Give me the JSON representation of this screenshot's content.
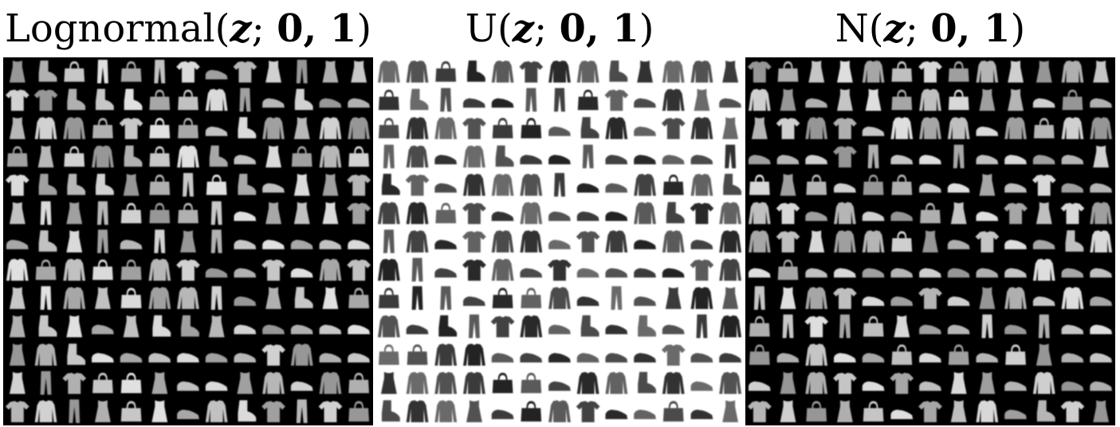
{
  "panels": [
    {
      "id": "lognormal",
      "title": "Lognormal(z; 0, 1)",
      "title_parts": {
        "func": "Lognormal(",
        "var": "z",
        "sep": "; ",
        "params": "0, 1",
        "close": ")"
      },
      "background": "#000000",
      "foreground": "#e8e8e8",
      "rows": [
        [
          "dress",
          "boot",
          "bag",
          "trouser",
          "bag",
          "trouser",
          "tshirt",
          "sneaker",
          "tshirt",
          "dress",
          "trouser",
          "dress",
          "dress"
        ],
        [
          "tshirt",
          "tshirt",
          "boot",
          "boot",
          "boot",
          "bag",
          "bag",
          "pullover",
          "trouser",
          "sneaker",
          "boot",
          "sneaker",
          "sneaker"
        ],
        [
          "dress",
          "pullover",
          "pullover",
          "bag",
          "tshirt",
          "bag",
          "bag",
          "sneaker",
          "boot",
          "pullover",
          "dress",
          "pullover",
          "pullover"
        ],
        [
          "bag",
          "dress",
          "bag",
          "pullover",
          "boot",
          "bag",
          "pullover",
          "boot",
          "sneaker",
          "dress",
          "bag",
          "pullover",
          "bag"
        ],
        [
          "tshirt",
          "boot",
          "boot",
          "boot",
          "dress",
          "bag",
          "trouser",
          "bag",
          "boot",
          "sneaker",
          "dress",
          "dress",
          "tshirt"
        ],
        [
          "dress",
          "trouser",
          "dress",
          "trouser",
          "bag",
          "bag",
          "bag",
          "trouser",
          "sneaker",
          "dress",
          "dress",
          "dress",
          "tshirt"
        ],
        [
          "sneaker",
          "boot",
          "dress",
          "trouser",
          "sneaker",
          "trouser",
          "dress",
          "trouser",
          "sneaker",
          "sneaker",
          "sneaker",
          "sneaker",
          "sneaker"
        ],
        [
          "pullover",
          "bag",
          "pullover",
          "bag",
          "bag",
          "pullover",
          "tshirt",
          "sneaker",
          "sneaker",
          "tshirt",
          "sneaker",
          "pullover",
          "tshirt"
        ],
        [
          "dress",
          "trouser",
          "pullover",
          "dress",
          "bag",
          "pullover",
          "pullover",
          "trouser",
          "sneaker",
          "dress",
          "boot",
          "dress",
          "bag"
        ],
        [
          "dress",
          "boot",
          "dress",
          "sneaker",
          "dress",
          "boot",
          "boot",
          "dress",
          "sneaker",
          "sneaker",
          "sneaker",
          "sneaker",
          "sneaker"
        ],
        [
          "dress",
          "pullover",
          "boot",
          "sneaker",
          "sneaker",
          "sneaker",
          "sneaker",
          "sneaker",
          "sneaker",
          "tshirt",
          "pullover",
          "sneaker",
          "sneaker"
        ],
        [
          "dress",
          "trouser",
          "tshirt",
          "bag",
          "bag",
          "dress",
          "sneaker",
          "sneaker",
          "dress",
          "pullover",
          "sneaker",
          "pullover",
          "bag"
        ],
        [
          "tshirt",
          "pullover",
          "trouser",
          "dress",
          "bag",
          "dress",
          "sneaker",
          "pullover",
          "boot",
          "tshirt",
          "trouser",
          "tshirt",
          "bag"
        ]
      ]
    },
    {
      "id": "uniform",
      "title": "U(z; 0, 1)",
      "title_parts": {
        "func": "U(",
        "var": "z",
        "sep": "; ",
        "params": "0, 1",
        "close": ")"
      },
      "background": "#ffffff",
      "foreground": "#1a1a1a",
      "rows": [
        [
          "pullover",
          "pullover",
          "bag",
          "boot",
          "pullover",
          "tshirt",
          "pullover",
          "pullover",
          "boot",
          "dress",
          "pullover",
          "pullover",
          "dress"
        ],
        [
          "bag",
          "boot",
          "trouser",
          "sneaker",
          "sneaker",
          "trouser",
          "trouser",
          "bag",
          "tshirt",
          "sneaker",
          "pullover",
          "dress",
          "sneaker"
        ],
        [
          "bag",
          "pullover",
          "pullover",
          "tshirt",
          "bag",
          "bag",
          "sneaker",
          "boot",
          "pullover",
          "sneaker",
          "tshirt",
          "pullover",
          "dress"
        ],
        [
          "trouser",
          "pullover",
          "sneaker",
          "pullover",
          "boot",
          "sneaker",
          "sneaker",
          "trouser",
          "sneaker",
          "sneaker",
          "sneaker",
          "sneaker",
          "trouser"
        ],
        [
          "boot",
          "tshirt",
          "sneaker",
          "pullover",
          "pullover",
          "pullover",
          "trouser",
          "sneaker",
          "sneaker",
          "pullover",
          "bag",
          "pullover",
          "boot"
        ],
        [
          "pullover",
          "pullover",
          "bag",
          "tshirt",
          "sneaker",
          "pullover",
          "sneaker",
          "sneaker",
          "sneaker",
          "pullover",
          "boot",
          "tshirt",
          "pullover"
        ],
        [
          "trouser",
          "pullover",
          "sneaker",
          "tshirt",
          "pullover",
          "pullover",
          "sneaker",
          "tshirt",
          "pullover",
          "sneaker",
          "pullover",
          "sneaker",
          "pullover"
        ],
        [
          "pullover",
          "trouser",
          "sneaker",
          "tshirt",
          "pullover",
          "sneaker",
          "tshirt",
          "sneaker",
          "sneaker",
          "sneaker",
          "sneaker",
          "tshirt",
          "pullover"
        ],
        [
          "bag",
          "trouser",
          "trouser",
          "sneaker",
          "bag",
          "bag",
          "pullover",
          "sneaker",
          "trouser",
          "sneaker",
          "dress",
          "pullover",
          "dress"
        ],
        [
          "pullover",
          "sneaker",
          "boot",
          "trouser",
          "tshirt",
          "pullover",
          "sneaker",
          "boot",
          "sneaker",
          "boot",
          "sneaker",
          "trouser",
          "pullover"
        ],
        [
          "bag",
          "bag",
          "pullover",
          "pullover",
          "sneaker",
          "sneaker",
          "sneaker",
          "sneaker",
          "sneaker",
          "sneaker",
          "tshirt",
          "sneaker",
          "sneaker"
        ],
        [
          "dress",
          "pullover",
          "pullover",
          "pullover",
          "bag",
          "bag",
          "sneaker",
          "pullover",
          "pullover",
          "boot",
          "pullover",
          "sneaker",
          "pullover"
        ],
        [
          "boot",
          "pullover",
          "pullover",
          "dress",
          "sneaker",
          "bag",
          "pullover",
          "tshirt",
          "sneaker",
          "sneaker",
          "bag",
          "sneaker",
          "dress"
        ]
      ]
    },
    {
      "id": "normal",
      "title": "N(z; 0, 1)",
      "title_parts": {
        "func": "N(",
        "var": "z",
        "sep": "; ",
        "params": "0, 1",
        "close": ")"
      },
      "background": "#000000",
      "foreground": "#e6e6e6",
      "rows": [
        [
          "tshirt",
          "bag",
          "dress",
          "dress",
          "pullover",
          "bag",
          "tshirt",
          "bag",
          "pullover",
          "dress",
          "dress",
          "pullover",
          "dress"
        ],
        [
          "pullover",
          "dress",
          "sneaker",
          "dress",
          "dress",
          "bag",
          "pullover",
          "bag",
          "dress",
          "dress",
          "sneaker",
          "bag",
          "sneaker"
        ],
        [
          "dress",
          "tshirt",
          "pullover",
          "tshirt",
          "sneaker",
          "pullover",
          "pullover",
          "pullover",
          "sneaker",
          "pullover",
          "bag",
          "pullover",
          "pullover"
        ],
        [
          "sneaker",
          "sneaker",
          "sneaker",
          "tshirt",
          "trouser",
          "sneaker",
          "sneaker",
          "trouser",
          "sneaker",
          "sneaker",
          "sneaker",
          "sneaker",
          "dress"
        ],
        [
          "bag",
          "dress",
          "bag",
          "sneaker",
          "bag",
          "bag",
          "sneaker",
          "sneaker",
          "dress",
          "sneaker",
          "tshirt",
          "sneaker",
          "sneaker"
        ],
        [
          "pullover",
          "tshirt",
          "sneaker",
          "pullover",
          "sneaker",
          "sneaker",
          "bag",
          "dress",
          "sneaker",
          "tshirt",
          "dress",
          "tshirt",
          "pullover"
        ],
        [
          "pullover",
          "tshirt",
          "dress",
          "pullover",
          "pullover",
          "bag",
          "dress",
          "sneaker",
          "tshirt",
          "sneaker",
          "sneaker",
          "boot",
          "pullover"
        ],
        [
          "sneaker",
          "bag",
          "sneaker",
          "sneaker",
          "sneaker",
          "sneaker",
          "sneaker",
          "sneaker",
          "sneaker",
          "sneaker",
          "pullover",
          "sneaker",
          "sneaker"
        ],
        [
          "trouser",
          "dress",
          "pullover",
          "tshirt",
          "sneaker",
          "sneaker",
          "tshirt",
          "sneaker",
          "dress",
          "pullover",
          "sneaker",
          "pullover",
          "sneaker"
        ],
        [
          "bag",
          "trouser",
          "tshirt",
          "trouser",
          "bag",
          "dress",
          "sneaker",
          "sneaker",
          "trouser",
          "sneaker",
          "trouser",
          "sneaker",
          "sneaker"
        ],
        [
          "bag",
          "sneaker",
          "pullover",
          "sneaker",
          "sneaker",
          "bag",
          "sneaker",
          "bag",
          "sneaker",
          "bag",
          "dress",
          "sneaker",
          "sneaker"
        ],
        [
          "sneaker",
          "dress",
          "pullover",
          "tshirt",
          "sneaker",
          "tshirt",
          "sneaker",
          "dress",
          "dress",
          "sneaker",
          "pullover",
          "sneaker",
          "sneaker"
        ],
        [
          "tshirt",
          "dress",
          "bag",
          "dress",
          "bag",
          "sneaker",
          "tshirt",
          "dress",
          "pullover",
          "sneaker",
          "boot",
          "tshirt",
          "dress"
        ]
      ]
    }
  ]
}
